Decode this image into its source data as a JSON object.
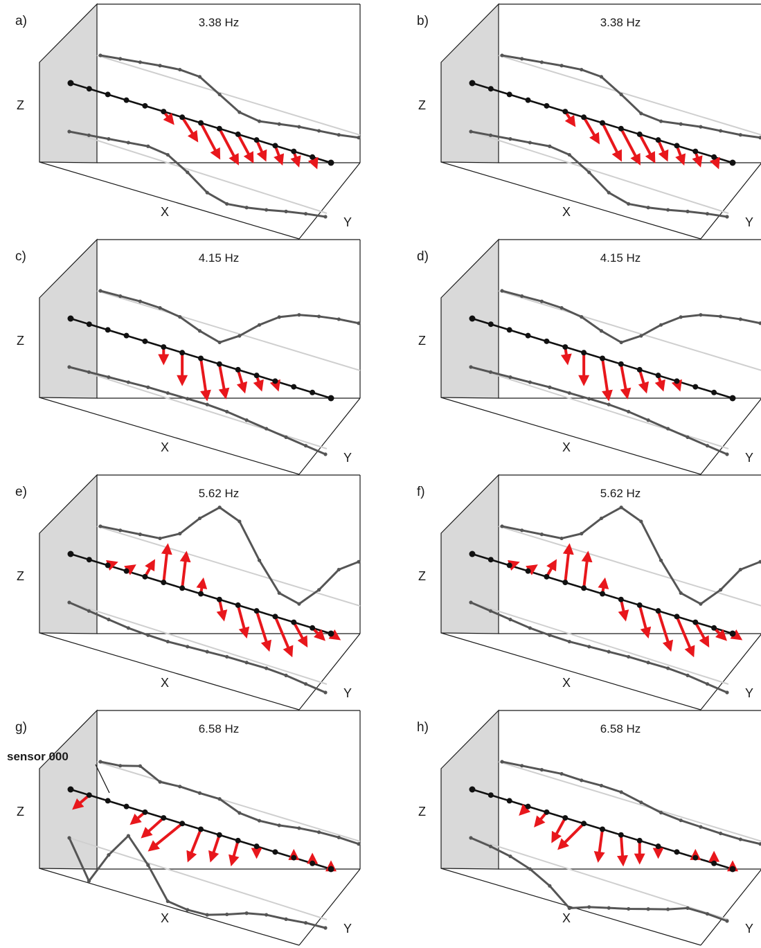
{
  "axis_labels": {
    "x": "X",
    "y": "Y",
    "z": "Z"
  },
  "colors": {
    "arrow": "#e8171c",
    "sensor_line": "#111111",
    "projection": "#555555",
    "frame": "#1a1a1a",
    "back_wall": "#d9d9d9",
    "guide": "#cfcfcf"
  },
  "panels": [
    {
      "label": "a)",
      "frequency": "3.38 Hz",
      "profile_top": [
        0.0,
        0.03,
        0.06,
        0.09,
        0.13,
        0.22,
        0.48,
        0.74,
        0.86,
        0.88,
        0.9,
        0.94,
        0.98,
        1.0
      ],
      "profile_bottom": [
        0.0,
        0.03,
        0.06,
        0.09,
        0.12,
        0.22,
        0.45,
        0.72,
        0.86,
        0.89,
        0.9,
        0.9,
        0.91,
        0.93
      ]
    },
    {
      "label": "b)",
      "frequency": "3.38 Hz",
      "profile_top": [
        0.0,
        0.03,
        0.06,
        0.09,
        0.13,
        0.22,
        0.48,
        0.76,
        0.86,
        0.88,
        0.9,
        0.94,
        0.98,
        1.0
      ],
      "profile_bottom": [
        0.0,
        0.03,
        0.06,
        0.09,
        0.12,
        0.22,
        0.45,
        0.72,
        0.86,
        0.89,
        0.9,
        0.9,
        0.91,
        0.93
      ]
    },
    {
      "label": "c)",
      "frequency": "4.15 Hz",
      "profile_top": [
        0.0,
        0.06,
        0.12,
        0.2,
        0.32,
        0.52,
        0.68,
        0.55,
        0.35,
        0.2,
        0.14,
        0.14,
        0.16,
        0.2
      ],
      "profile_bottom": [
        0.0,
        0.05,
        0.1,
        0.15,
        0.2,
        0.26,
        0.32,
        0.38,
        0.46,
        0.56,
        0.66,
        0.76,
        0.86,
        0.96
      ]
    },
    {
      "label": "d)",
      "frequency": "4.15 Hz",
      "profile_top": [
        0.0,
        0.06,
        0.12,
        0.2,
        0.32,
        0.52,
        0.68,
        0.55,
        0.35,
        0.2,
        0.14,
        0.14,
        0.16,
        0.2
      ],
      "profile_bottom": [
        0.0,
        0.05,
        0.1,
        0.15,
        0.2,
        0.26,
        0.32,
        0.38,
        0.46,
        0.56,
        0.66,
        0.76,
        0.86,
        0.96
      ]
    },
    {
      "label": "e)",
      "frequency": "5.62 Hz",
      "profile_top": [
        0.0,
        0.04,
        0.08,
        0.12,
        0.02,
        -0.25,
        -0.45,
        -0.25,
        0.35,
        0.85,
        1.0,
        0.75,
        0.4,
        0.25
      ],
      "profile_bottom": [
        0.0,
        0.1,
        0.2,
        0.3,
        0.38,
        0.45,
        0.5,
        0.55,
        0.6,
        0.66,
        0.72,
        0.8,
        0.9,
        1.0
      ]
    },
    {
      "label": "f)",
      "frequency": "5.62 Hz",
      "profile_top": [
        0.0,
        0.04,
        0.08,
        0.12,
        0.02,
        -0.25,
        -0.45,
        -0.25,
        0.35,
        0.85,
        1.0,
        0.75,
        0.4,
        0.25
      ],
      "profile_bottom": [
        0.0,
        0.1,
        0.2,
        0.3,
        0.38,
        0.45,
        0.5,
        0.55,
        0.6,
        0.66,
        0.72,
        0.8,
        0.9,
        1.0
      ]
    },
    {
      "label": "g)",
      "frequency": "6.58 Hz",
      "annotation": "sensor 000",
      "profile_top": [
        0.0,
        0.04,
        0.02,
        0.25,
        0.3,
        0.38,
        0.45,
        0.65,
        0.75,
        0.8,
        0.82,
        0.86,
        0.92,
        1.0
      ],
      "profile_bottom": [
        0.0,
        0.6,
        0.2,
        -0.1,
        0.3,
        0.8,
        0.9,
        0.95,
        0.92,
        0.88,
        0.88,
        0.92,
        0.95,
        1.0
      ]
    },
    {
      "label": "h)",
      "frequency": "6.58 Hz",
      "profile_top": [
        0.0,
        0.04,
        0.08,
        0.12,
        0.2,
        0.26,
        0.34,
        0.48,
        0.62,
        0.72,
        0.8,
        0.88,
        0.95,
        1.0
      ],
      "profile_bottom": [
        0.0,
        0.1,
        0.22,
        0.38,
        0.6,
        0.9,
        0.86,
        0.85,
        0.84,
        0.82,
        0.8,
        0.76,
        0.82,
        0.9
      ]
    }
  ],
  "arrow_sets": [
    [
      [
        0,
        0
      ],
      [
        0,
        0
      ],
      [
        0,
        0
      ],
      [
        0,
        0.01
      ],
      [
        0,
        0.02
      ],
      [
        0.2,
        0.25
      ],
      [
        0.35,
        0.55
      ],
      [
        0.45,
        0.85
      ],
      [
        0.45,
        0.85
      ],
      [
        0.35,
        0.65
      ],
      [
        0.2,
        0.45
      ],
      [
        0.15,
        0.4
      ],
      [
        0.1,
        0.3
      ],
      [
        0.08,
        0.2
      ],
      [
        0,
        0
      ]
    ],
    [
      [
        0,
        0
      ],
      [
        0,
        0
      ],
      [
        0,
        0
      ],
      [
        0,
        0.01
      ],
      [
        0,
        0.02
      ],
      [
        0.2,
        0.3
      ],
      [
        0.35,
        0.6
      ],
      [
        0.45,
        0.9
      ],
      [
        0.45,
        0.85
      ],
      [
        0.35,
        0.65
      ],
      [
        0.2,
        0.45
      ],
      [
        0.15,
        0.4
      ],
      [
        0.1,
        0.3
      ],
      [
        0.08,
        0.2
      ],
      [
        0,
        0
      ]
    ],
    [
      [
        0,
        0
      ],
      [
        0,
        0
      ],
      [
        0,
        0.01
      ],
      [
        0,
        0.01
      ],
      [
        0,
        0.02
      ],
      [
        0,
        0.35
      ],
      [
        0,
        0.75
      ],
      [
        0.15,
        1.0
      ],
      [
        0.15,
        0.8
      ],
      [
        0.15,
        0.5
      ],
      [
        0.1,
        0.3
      ],
      [
        0.05,
        0.15
      ],
      [
        0,
        0
      ],
      [
        0,
        0
      ],
      [
        0,
        0
      ]
    ],
    [
      [
        0,
        0
      ],
      [
        0,
        0
      ],
      [
        0,
        0.01
      ],
      [
        0,
        0.01
      ],
      [
        0,
        0.02
      ],
      [
        0.05,
        0.35
      ],
      [
        0,
        0.75
      ],
      [
        0.15,
        1.0
      ],
      [
        0.15,
        0.8
      ],
      [
        0.15,
        0.5
      ],
      [
        0.1,
        0.3
      ],
      [
        0.05,
        0.15
      ],
      [
        0,
        0
      ],
      [
        0,
        0
      ],
      [
        0,
        0
      ]
    ],
    [
      [
        0,
        0
      ],
      [
        0,
        0
      ],
      [
        0.15,
        -0.05
      ],
      [
        0.15,
        -0.1
      ],
      [
        0.2,
        -0.35
      ],
      [
        0.1,
        -0.9
      ],
      [
        0.1,
        -0.85
      ],
      [
        0.05,
        -0.3
      ],
      [
        0.1,
        0.45
      ],
      [
        0.2,
        0.75
      ],
      [
        0.3,
        0.95
      ],
      [
        0.4,
        0.95
      ],
      [
        0.3,
        0.55
      ],
      [
        0.25,
        0.25
      ],
      [
        0.15,
        0.1
      ]
    ],
    [
      [
        0,
        0
      ],
      [
        0,
        0
      ],
      [
        0.15,
        -0.05
      ],
      [
        0.15,
        -0.1
      ],
      [
        0.2,
        -0.35
      ],
      [
        0.1,
        -0.9
      ],
      [
        0.1,
        -0.85
      ],
      [
        0.05,
        -0.3
      ],
      [
        0.1,
        0.45
      ],
      [
        0.2,
        0.75
      ],
      [
        0.3,
        0.95
      ],
      [
        0.4,
        0.95
      ],
      [
        0.3,
        0.55
      ],
      [
        0.25,
        0.25
      ],
      [
        0.15,
        0.1
      ]
    ],
    [
      [
        0,
        0
      ],
      [
        -0.35,
        0.3
      ],
      [
        0,
        0
      ],
      [
        0,
        0
      ],
      [
        -0.3,
        0.25
      ],
      [
        -0.5,
        0.45
      ],
      [
        -0.8,
        0.65
      ],
      [
        -0.3,
        0.75
      ],
      [
        -0.2,
        0.6
      ],
      [
        -0.15,
        0.55
      ],
      [
        0,
        0.2
      ],
      [
        0,
        0
      ],
      [
        0,
        -0.1
      ],
      [
        0,
        -0.15
      ],
      [
        0,
        -0.1
      ]
    ],
    [
      [
        0,
        0
      ],
      [
        0,
        0
      ],
      [
        0,
        0
      ],
      [
        -0.15,
        0.15
      ],
      [
        -0.25,
        0.3
      ],
      [
        -0.3,
        0.55
      ],
      [
        -0.6,
        0.6
      ],
      [
        -0.1,
        0.75
      ],
      [
        0.05,
        0.7
      ],
      [
        0,
        0.5
      ],
      [
        0,
        0.2
      ],
      [
        0,
        0
      ],
      [
        0,
        -0.1
      ],
      [
        0,
        -0.2
      ],
      [
        0,
        -0.1
      ]
    ]
  ]
}
